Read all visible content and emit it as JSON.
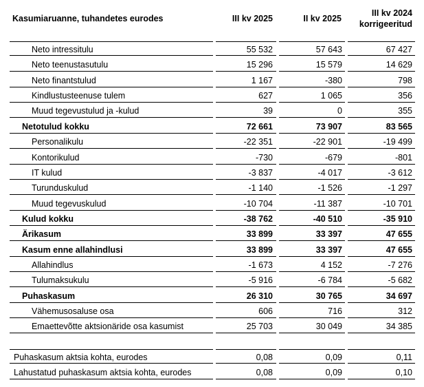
{
  "header": {
    "title": "Kasumiaruanne, tuhandetes eurodes",
    "columns": [
      [
        "III kv 2025"
      ],
      [
        "II kv 2025"
      ],
      [
        "III kv 2024",
        "korrigeeritud"
      ]
    ]
  },
  "rows": [
    [
      "Neto intressitulu",
      "55 532",
      "57 643",
      "67 427"
    ],
    [
      "Neto teenustasutulu",
      "15 296",
      "15 579",
      "14 629"
    ],
    [
      "Neto finantstulud",
      "1 167",
      "-380",
      "798"
    ],
    [
      "Kindlustusteenuse tulem",
      "627",
      "1 065",
      "356"
    ],
    [
      "Muud tegevustulud ja -kulud",
      "39",
      "0",
      "355"
    ],
    [
      "Netotulud kokku",
      "72 661",
      "73 907",
      "83 565"
    ],
    [
      "Personalikulu",
      "-22 351",
      "-22 901",
      "-19 499"
    ],
    [
      "Kontorikulud",
      "-730",
      "-679",
      "-801"
    ],
    [
      "IT kulud",
      "-3 837",
      "-4 017",
      "-3 612"
    ],
    [
      "Turunduskulud",
      "-1 140",
      "-1 526",
      "-1 297"
    ],
    [
      "Muud tegevuskulud",
      "-10 704",
      "-11 387",
      "-10 701"
    ],
    [
      "Kulud kokku",
      "-38 762",
      "-40 510",
      "-35 910"
    ],
    [
      "Ärikasum",
      "33 899",
      "33 397",
      "47 655"
    ],
    [
      "Kasum enne allahindlusi",
      "33 899",
      "33 397",
      "47 655"
    ],
    [
      "Allahindlus",
      "-1 673",
      "4 152",
      "-7 276"
    ],
    [
      "Tulumaksukulu",
      "-5 916",
      "-6 784",
      "-5 682"
    ],
    [
      "Puhaskasum",
      "26 310",
      "30 765",
      "34 697"
    ],
    [
      "Vähemusosaluse osa",
      "606",
      "716",
      "312"
    ],
    [
      "Emaettevõtte aktsionäride osa kasumist",
      "25 703",
      "30 049",
      "34 385"
    ]
  ],
  "per_share_rows": [
    [
      "Puhaskasum aktsia kohta, eurodes",
      "0,08",
      "0,09",
      "0,11"
    ],
    [
      "Lahustatud puhaskasum aktsia kohta, eurodes",
      "0,08",
      "0,09",
      "0,10"
    ]
  ]
}
